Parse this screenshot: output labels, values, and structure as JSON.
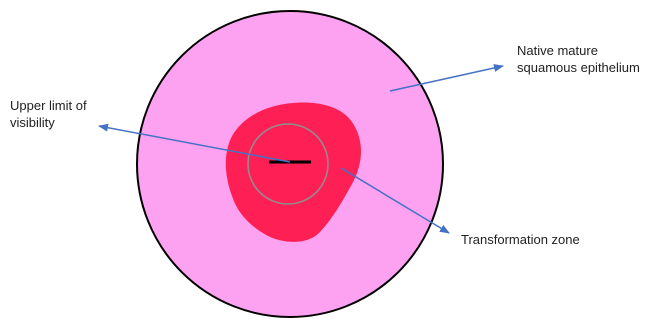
{
  "labels": {
    "native_mature": {
      "line1": "Native mature",
      "line2": "squamous epithelium"
    },
    "upper_limit": {
      "line1": "Upper limit of",
      "line2": "visibility"
    },
    "transformation_zone": {
      "line1": "Transformation zone"
    }
  },
  "colors": {
    "epithelium_fill": "#fda1f1",
    "outline": "#000000",
    "transformation_zone_fill": "#fe1f55",
    "visibility_circle": "#909090",
    "os_line": "#000000",
    "arrow": "#4472c4",
    "text": "#222222"
  }
}
